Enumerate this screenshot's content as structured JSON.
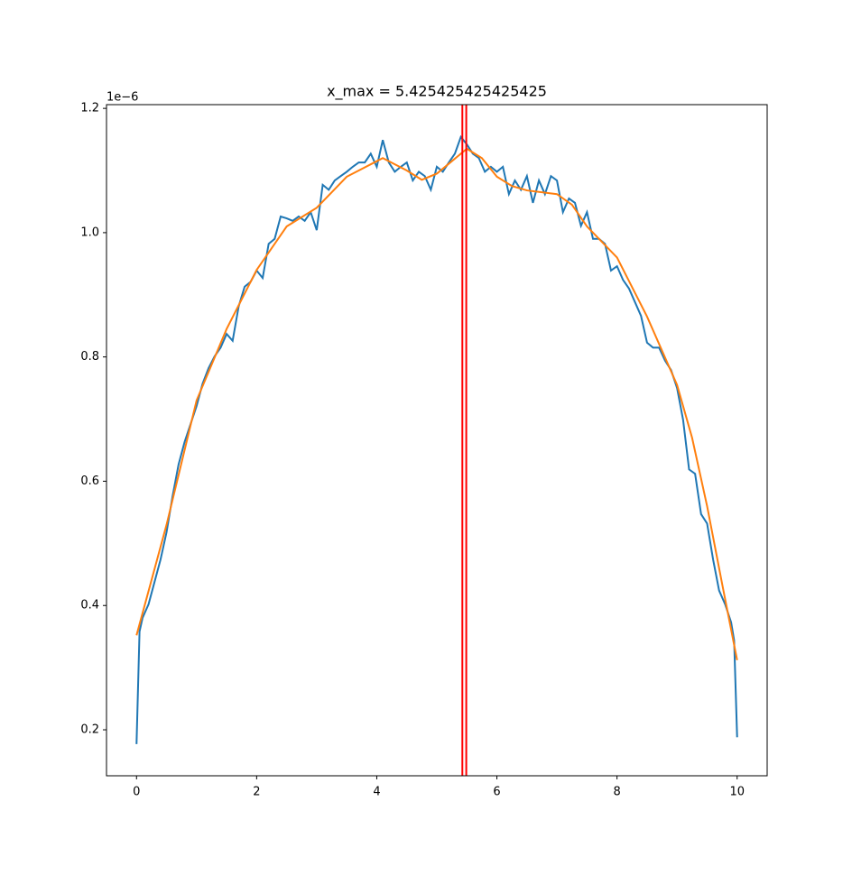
{
  "chart_data": {
    "type": "line",
    "title": "x_max = 5.425425425425425",
    "y_offset_label": "1e−6",
    "xlim": [
      -0.5,
      10.5
    ],
    "xticks": [
      0,
      2,
      4,
      6,
      8,
      10
    ],
    "ylim": [
      0.126,
      1.206
    ],
    "yticks": [
      {
        "value": 0.2,
        "label": "0.2"
      },
      {
        "value": 0.4,
        "label": "0.4"
      },
      {
        "value": 0.6,
        "label": "0.6"
      },
      {
        "value": 0.8,
        "label": "0.8"
      },
      {
        "value": 1,
        "label": "1.0"
      },
      {
        "value": 1.2,
        "label": "1.2"
      }
    ],
    "vlines": [
      5.425,
      5.49
    ],
    "vline_color": "#ff0000",
    "series": [
      {
        "color": "#1f77b4",
        "x": [
          0,
          0.05,
          0.1,
          0.2,
          0.3,
          0.4,
          0.5,
          0.6,
          0.7,
          0.8,
          0.9,
          1.0,
          1.1,
          1.2,
          1.3,
          1.4,
          1.5,
          1.6,
          1.7,
          1.8,
          1.9,
          2.0,
          2.1,
          2.2,
          2.3,
          2.4,
          2.5,
          2.6,
          2.7,
          2.8,
          2.9,
          3.0,
          3.1,
          3.2,
          3.3,
          3.4,
          3.5,
          3.6,
          3.7,
          3.8,
          3.9,
          4.0,
          4.1,
          4.2,
          4.3,
          4.4,
          4.5,
          4.6,
          4.7,
          4.8,
          4.9,
          5.0,
          5.1,
          5.2,
          5.3,
          5.4,
          5.5,
          5.6,
          5.7,
          5.8,
          5.9,
          6.0,
          6.1,
          6.2,
          6.3,
          6.4,
          6.5,
          6.6,
          6.7,
          6.8,
          6.9,
          7.0,
          7.1,
          7.2,
          7.3,
          7.4,
          7.5,
          7.6,
          7.7,
          7.8,
          7.9,
          8.0,
          8.1,
          8.2,
          8.3,
          8.4,
          8.5,
          8.6,
          8.7,
          8.8,
          8.9,
          9.0,
          9.1,
          9.2,
          9.3,
          9.4,
          9.5,
          9.6,
          9.7,
          9.8,
          9.9,
          9.95,
          10.0
        ],
        "values": [
          0.177,
          0.358,
          0.38,
          0.402,
          0.438,
          0.474,
          0.518,
          0.576,
          0.627,
          0.663,
          0.692,
          0.721,
          0.757,
          0.782,
          0.801,
          0.815,
          0.837,
          0.826,
          0.881,
          0.913,
          0.921,
          0.939,
          0.927,
          0.982,
          0.99,
          1.026,
          1.023,
          1.019,
          1.026,
          1.019,
          1.033,
          1.004,
          1.077,
          1.069,
          1.084,
          1.091,
          1.098,
          1.106,
          1.113,
          1.113,
          1.127,
          1.106,
          1.149,
          1.113,
          1.098,
          1.106,
          1.113,
          1.084,
          1.098,
          1.091,
          1.069,
          1.106,
          1.098,
          1.113,
          1.127,
          1.154,
          1.142,
          1.127,
          1.12,
          1.098,
          1.106,
          1.098,
          1.106,
          1.062,
          1.084,
          1.069,
          1.091,
          1.048,
          1.084,
          1.062,
          1.091,
          1.084,
          1.033,
          1.055,
          1.048,
          1.011,
          1.033,
          0.99,
          0.99,
          0.982,
          0.939,
          0.946,
          0.924,
          0.91,
          0.888,
          0.866,
          0.823,
          0.815,
          0.815,
          0.794,
          0.779,
          0.75,
          0.699,
          0.619,
          0.612,
          0.547,
          0.532,
          0.474,
          0.424,
          0.402,
          0.373,
          0.344,
          0.188
        ]
      },
      {
        "color": "#ff7f0e",
        "x": [
          0,
          0.5,
          1.0,
          1.5,
          2.0,
          2.5,
          3.0,
          3.5,
          4.0,
          4.1,
          4.5,
          4.75,
          5.0,
          5.25,
          5.5,
          5.75,
          6.0,
          6.25,
          6.5,
          7.0,
          7.25,
          7.5,
          8.0,
          8.5,
          9.0,
          9.25,
          9.5,
          9.75,
          10.0
        ],
        "values": [
          0.352,
          0.53,
          0.73,
          0.845,
          0.94,
          1.01,
          1.04,
          1.09,
          1.115,
          1.12,
          1.1,
          1.085,
          1.095,
          1.115,
          1.135,
          1.12,
          1.09,
          1.075,
          1.068,
          1.062,
          1.045,
          1.01,
          0.96,
          0.865,
          0.755,
          0.67,
          0.56,
          0.435,
          0.312
        ]
      }
    ]
  }
}
